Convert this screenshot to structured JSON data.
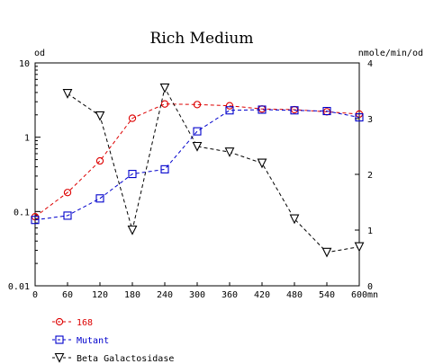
{
  "chart_data": {
    "type": "line",
    "title": "Rich Medium",
    "x": [
      0,
      60,
      120,
      180,
      240,
      300,
      360,
      420,
      480,
      540,
      600
    ],
    "x_ticks": [
      "0",
      "60",
      "120",
      "180",
      "240",
      "300",
      "360",
      "420",
      "480",
      "540",
      "600"
    ],
    "x_unit": "mn",
    "xlim": [
      0,
      600
    ],
    "y_left": {
      "label": "od",
      "scale": "log",
      "lim": [
        0.01,
        10
      ],
      "ticks": [
        "0.01",
        "0.1",
        "1",
        "10"
      ]
    },
    "y_right": {
      "label": "nmole/min/od",
      "scale": "linear",
      "lim": [
        0,
        4
      ],
      "ticks": [
        "0",
        "1",
        "2",
        "3",
        "4"
      ]
    },
    "series": [
      {
        "name": "168",
        "axis": "left",
        "marker": "circle",
        "color": "#dd0000",
        "x": [
          0,
          60,
          120,
          180,
          240,
          300,
          360,
          420,
          480,
          540,
          600
        ],
        "values": [
          0.085,
          0.18,
          0.48,
          1.8,
          2.8,
          2.75,
          2.65,
          2.4,
          2.35,
          2.2,
          2.05
        ]
      },
      {
        "name": "Mutant",
        "axis": "left",
        "marker": "square",
        "color": "#0000cc",
        "x": [
          0,
          60,
          120,
          180,
          240,
          300,
          360,
          420,
          480,
          540,
          600
        ],
        "values": [
          0.077,
          0.088,
          0.15,
          0.32,
          0.37,
          1.2,
          2.3,
          2.35,
          2.3,
          2.25,
          1.85
        ]
      },
      {
        "name": "Beta Galactosidase",
        "axis": "right",
        "marker": "triangle-down",
        "color": "#000000",
        "x": [
          60,
          120,
          180,
          240,
          300,
          360,
          420,
          480,
          540,
          600
        ],
        "values": [
          3.45,
          3.05,
          1.0,
          3.55,
          2.5,
          2.4,
          2.2,
          1.2,
          0.6,
          0.7
        ]
      }
    ],
    "legend_placement": "bottom-left",
    "grid": false
  }
}
